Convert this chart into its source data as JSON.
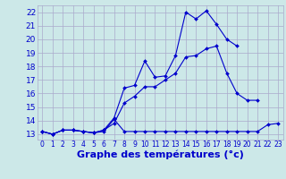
{
  "xlabel": "Graphe des températures (°c)",
  "bg_color": "#cce8e8",
  "grid_color": "#aaaacc",
  "line_color": "#0000cc",
  "xlim": [
    -0.5,
    23.5
  ],
  "ylim": [
    12.6,
    22.5
  ],
  "xticks": [
    0,
    1,
    2,
    3,
    4,
    5,
    6,
    7,
    8,
    9,
    10,
    11,
    12,
    13,
    14,
    15,
    16,
    17,
    18,
    19,
    20,
    21,
    22,
    23
  ],
  "yticks": [
    13,
    14,
    15,
    16,
    17,
    18,
    19,
    20,
    21,
    22
  ],
  "line1_x": [
    0,
    1,
    2,
    3,
    4,
    5,
    6,
    7,
    8,
    9,
    10,
    11,
    12,
    13,
    14,
    15,
    16,
    17,
    18,
    19,
    20,
    21,
    22,
    23
  ],
  "line1_y": [
    13.2,
    13.0,
    13.3,
    13.3,
    13.2,
    13.1,
    13.2,
    14.1,
    13.2,
    13.2,
    13.2,
    13.2,
    13.2,
    13.2,
    13.2,
    13.2,
    13.2,
    13.2,
    13.2,
    13.2,
    13.2,
    13.2,
    13.7,
    13.8
  ],
  "line2_x": [
    0,
    1,
    2,
    3,
    4,
    5,
    6,
    7,
    8,
    9,
    10,
    11,
    12,
    13,
    14,
    15,
    16,
    17,
    18,
    19,
    20,
    21,
    22,
    23
  ],
  "line2_y": [
    13.2,
    13.0,
    13.3,
    13.3,
    13.2,
    13.1,
    13.3,
    13.8,
    15.3,
    15.8,
    16.5,
    16.5,
    17.0,
    17.5,
    18.7,
    18.8,
    19.3,
    19.5,
    17.5,
    16.0,
    15.5,
    15.5,
    null,
    null
  ],
  "line3_x": [
    0,
    1,
    2,
    3,
    4,
    5,
    6,
    7,
    8,
    9,
    10,
    11,
    12,
    13,
    14,
    15,
    16,
    17,
    18,
    19,
    20,
    21,
    22,
    23
  ],
  "line3_y": [
    13.2,
    13.0,
    13.3,
    13.3,
    13.2,
    13.1,
    13.3,
    14.2,
    16.4,
    16.6,
    18.4,
    17.2,
    17.3,
    18.8,
    22.0,
    21.5,
    22.1,
    21.1,
    20.0,
    19.5,
    null,
    null,
    null,
    null
  ],
  "xlabel_fontsize": 8,
  "ytick_fontsize": 6.5,
  "xtick_fontsize": 5.5
}
